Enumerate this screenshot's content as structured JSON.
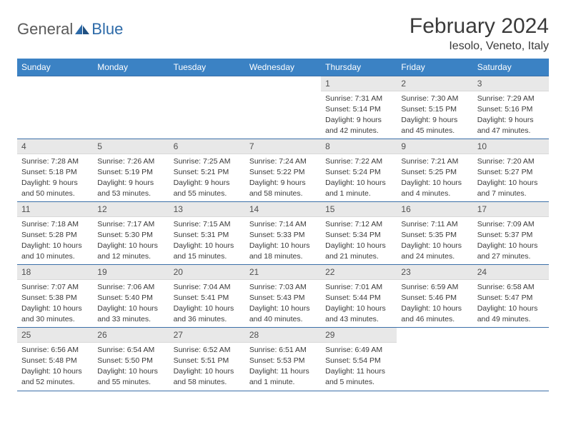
{
  "logo": {
    "part1": "General",
    "part2": "Blue"
  },
  "title": "February 2024",
  "location": "Iesolo, Veneto, Italy",
  "colors": {
    "header_bg": "#3b82c4",
    "header_text": "#ffffff",
    "rule": "#3b6fa8",
    "daynum_bg": "#e8e8e8",
    "text": "#3a3a3a",
    "logo_gray": "#5a5a5a",
    "logo_blue": "#2d6aa8"
  },
  "day_labels": [
    "Sunday",
    "Monday",
    "Tuesday",
    "Wednesday",
    "Thursday",
    "Friday",
    "Saturday"
  ],
  "weeks": [
    [
      null,
      null,
      null,
      null,
      {
        "n": "1",
        "sr": "7:31 AM",
        "ss": "5:14 PM",
        "dl": "9 hours and 42 minutes."
      },
      {
        "n": "2",
        "sr": "7:30 AM",
        "ss": "5:15 PM",
        "dl": "9 hours and 45 minutes."
      },
      {
        "n": "3",
        "sr": "7:29 AM",
        "ss": "5:16 PM",
        "dl": "9 hours and 47 minutes."
      }
    ],
    [
      {
        "n": "4",
        "sr": "7:28 AM",
        "ss": "5:18 PM",
        "dl": "9 hours and 50 minutes."
      },
      {
        "n": "5",
        "sr": "7:26 AM",
        "ss": "5:19 PM",
        "dl": "9 hours and 53 minutes."
      },
      {
        "n": "6",
        "sr": "7:25 AM",
        "ss": "5:21 PM",
        "dl": "9 hours and 55 minutes."
      },
      {
        "n": "7",
        "sr": "7:24 AM",
        "ss": "5:22 PM",
        "dl": "9 hours and 58 minutes."
      },
      {
        "n": "8",
        "sr": "7:22 AM",
        "ss": "5:24 PM",
        "dl": "10 hours and 1 minute."
      },
      {
        "n": "9",
        "sr": "7:21 AM",
        "ss": "5:25 PM",
        "dl": "10 hours and 4 minutes."
      },
      {
        "n": "10",
        "sr": "7:20 AM",
        "ss": "5:27 PM",
        "dl": "10 hours and 7 minutes."
      }
    ],
    [
      {
        "n": "11",
        "sr": "7:18 AM",
        "ss": "5:28 PM",
        "dl": "10 hours and 10 minutes."
      },
      {
        "n": "12",
        "sr": "7:17 AM",
        "ss": "5:30 PM",
        "dl": "10 hours and 12 minutes."
      },
      {
        "n": "13",
        "sr": "7:15 AM",
        "ss": "5:31 PM",
        "dl": "10 hours and 15 minutes."
      },
      {
        "n": "14",
        "sr": "7:14 AM",
        "ss": "5:33 PM",
        "dl": "10 hours and 18 minutes."
      },
      {
        "n": "15",
        "sr": "7:12 AM",
        "ss": "5:34 PM",
        "dl": "10 hours and 21 minutes."
      },
      {
        "n": "16",
        "sr": "7:11 AM",
        "ss": "5:35 PM",
        "dl": "10 hours and 24 minutes."
      },
      {
        "n": "17",
        "sr": "7:09 AM",
        "ss": "5:37 PM",
        "dl": "10 hours and 27 minutes."
      }
    ],
    [
      {
        "n": "18",
        "sr": "7:07 AM",
        "ss": "5:38 PM",
        "dl": "10 hours and 30 minutes."
      },
      {
        "n": "19",
        "sr": "7:06 AM",
        "ss": "5:40 PM",
        "dl": "10 hours and 33 minutes."
      },
      {
        "n": "20",
        "sr": "7:04 AM",
        "ss": "5:41 PM",
        "dl": "10 hours and 36 minutes."
      },
      {
        "n": "21",
        "sr": "7:03 AM",
        "ss": "5:43 PM",
        "dl": "10 hours and 40 minutes."
      },
      {
        "n": "22",
        "sr": "7:01 AM",
        "ss": "5:44 PM",
        "dl": "10 hours and 43 minutes."
      },
      {
        "n": "23",
        "sr": "6:59 AM",
        "ss": "5:46 PM",
        "dl": "10 hours and 46 minutes."
      },
      {
        "n": "24",
        "sr": "6:58 AM",
        "ss": "5:47 PM",
        "dl": "10 hours and 49 minutes."
      }
    ],
    [
      {
        "n": "25",
        "sr": "6:56 AM",
        "ss": "5:48 PM",
        "dl": "10 hours and 52 minutes."
      },
      {
        "n": "26",
        "sr": "6:54 AM",
        "ss": "5:50 PM",
        "dl": "10 hours and 55 minutes."
      },
      {
        "n": "27",
        "sr": "6:52 AM",
        "ss": "5:51 PM",
        "dl": "10 hours and 58 minutes."
      },
      {
        "n": "28",
        "sr": "6:51 AM",
        "ss": "5:53 PM",
        "dl": "11 hours and 1 minute."
      },
      {
        "n": "29",
        "sr": "6:49 AM",
        "ss": "5:54 PM",
        "dl": "11 hours and 5 minutes."
      },
      null,
      null
    ]
  ],
  "labels": {
    "sunrise": "Sunrise:",
    "sunset": "Sunset:",
    "daylight": "Daylight:"
  }
}
